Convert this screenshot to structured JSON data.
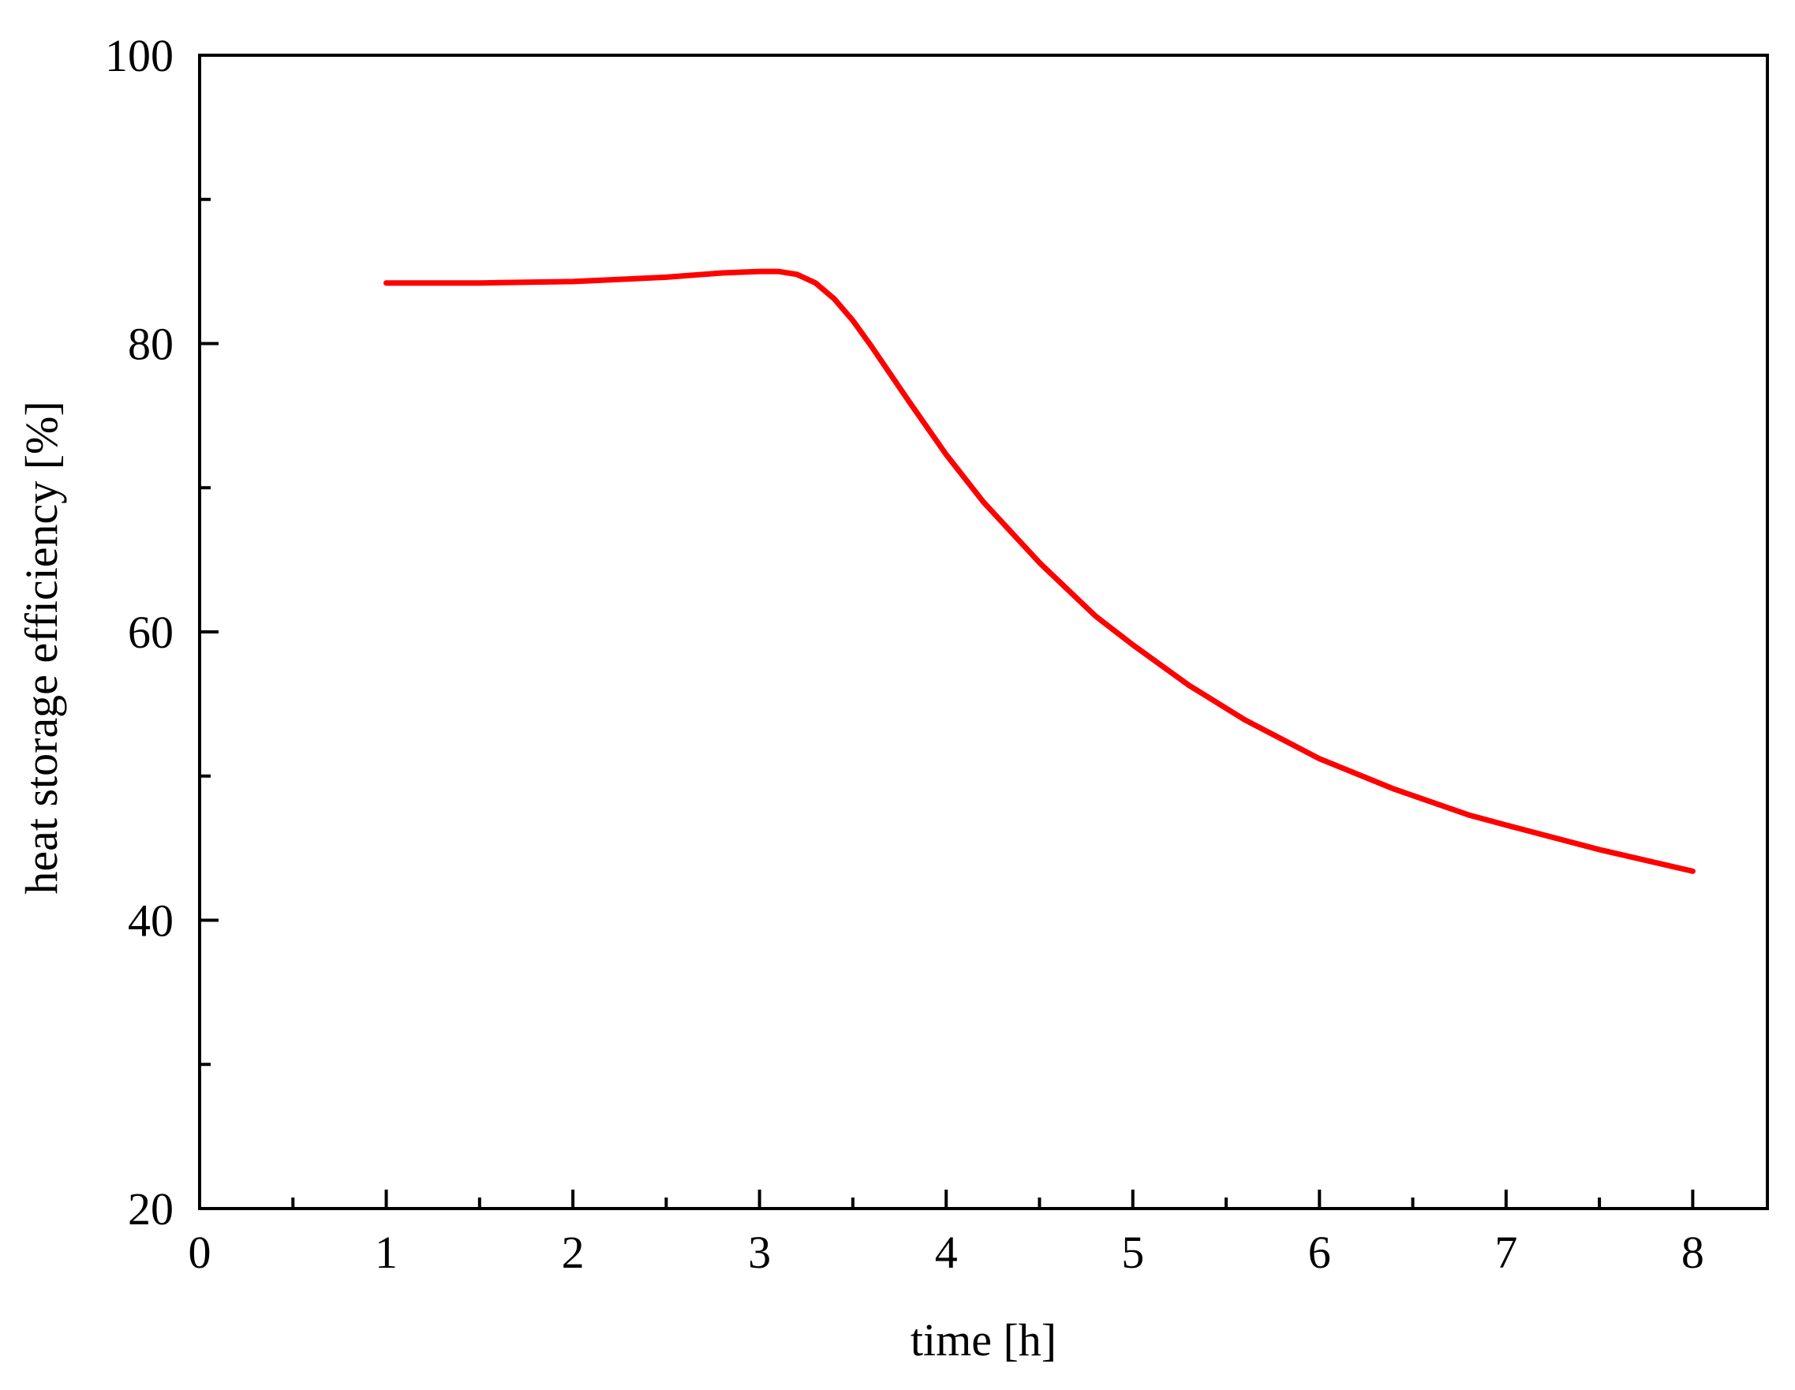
{
  "chart_data": {
    "type": "line",
    "title": "",
    "xlabel": "time [h]",
    "ylabel": "heat storage efficiency [%]",
    "xlim": [
      0,
      8.4
    ],
    "ylim": [
      20,
      100
    ],
    "xticks": [
      0,
      1,
      2,
      3,
      4,
      5,
      6,
      7,
      8
    ],
    "xtick_labels": [
      "0",
      "1",
      "2",
      "3",
      "4",
      "5",
      "6",
      "7",
      "8"
    ],
    "x_minor_ticks": [
      0.5,
      1.5,
      2.5,
      3.5,
      4.5,
      5.5,
      6.5,
      7.5
    ],
    "yticks": [
      20,
      40,
      60,
      80,
      100
    ],
    "ytick_labels": [
      "20",
      "40",
      "60",
      "80",
      "100"
    ],
    "y_minor_ticks": [
      30,
      50,
      70,
      90
    ],
    "grid": false,
    "legend": "none",
    "series": [
      {
        "color": "#ff0000",
        "x": [
          1.0,
          1.5,
          2.0,
          2.5,
          2.8,
          3.0,
          3.1,
          3.2,
          3.3,
          3.4,
          3.5,
          3.6,
          3.7,
          3.8,
          4.0,
          4.2,
          4.5,
          4.8,
          5.0,
          5.3,
          5.6,
          6.0,
          6.4,
          6.8,
          7.0,
          7.5,
          8.0
        ],
        "y": [
          84.2,
          84.2,
          84.3,
          84.6,
          84.9,
          85.0,
          85.0,
          84.8,
          84.2,
          83.1,
          81.6,
          79.8,
          77.9,
          76.0,
          72.3,
          69.0,
          64.8,
          61.1,
          59.1,
          56.3,
          53.9,
          51.2,
          49.1,
          47.3,
          46.6,
          44.9,
          43.4
        ]
      }
    ]
  }
}
